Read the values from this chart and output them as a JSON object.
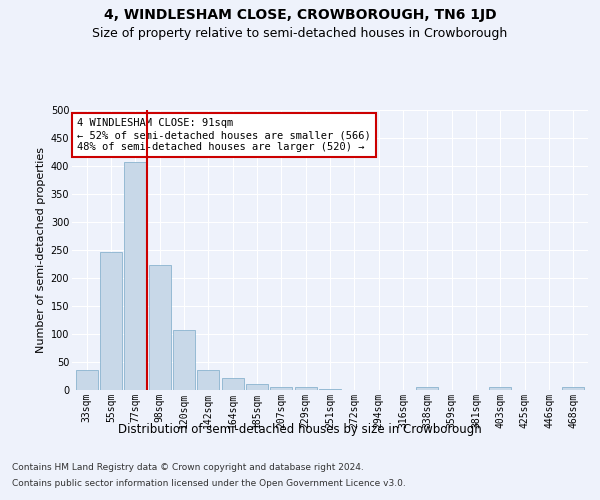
{
  "title": "4, WINDLESHAM CLOSE, CROWBOROUGH, TN6 1JD",
  "subtitle": "Size of property relative to semi-detached houses in Crowborough",
  "xlabel": "Distribution of semi-detached houses by size in Crowborough",
  "ylabel": "Number of semi-detached properties",
  "categories": [
    "33sqm",
    "55sqm",
    "77sqm",
    "98sqm",
    "120sqm",
    "142sqm",
    "164sqm",
    "185sqm",
    "207sqm",
    "229sqm",
    "251sqm",
    "272sqm",
    "294sqm",
    "316sqm",
    "338sqm",
    "359sqm",
    "381sqm",
    "403sqm",
    "425sqm",
    "446sqm",
    "468sqm"
  ],
  "values": [
    35,
    246,
    407,
    224,
    107,
    36,
    21,
    10,
    6,
    5,
    1,
    0,
    0,
    0,
    5,
    0,
    0,
    5,
    0,
    0,
    5
  ],
  "bar_color": "#c8d8e8",
  "bar_edge_color": "#7aaac8",
  "vline_x": 2.5,
  "vline_color": "#cc0000",
  "annotation_text": "4 WINDLESHAM CLOSE: 91sqm\n← 52% of semi-detached houses are smaller (566)\n48% of semi-detached houses are larger (520) →",
  "annotation_box_color": "#ffffff",
  "annotation_box_edge_color": "#cc0000",
  "ylim": [
    0,
    500
  ],
  "yticks": [
    0,
    50,
    100,
    150,
    200,
    250,
    300,
    350,
    400,
    450,
    500
  ],
  "background_color": "#eef2fb",
  "plot_background_color": "#eef2fb",
  "footer_line1": "Contains HM Land Registry data © Crown copyright and database right 2024.",
  "footer_line2": "Contains public sector information licensed under the Open Government Licence v3.0.",
  "title_fontsize": 10,
  "subtitle_fontsize": 9,
  "xlabel_fontsize": 8.5,
  "ylabel_fontsize": 8,
  "tick_fontsize": 7,
  "footer_fontsize": 6.5,
  "annotation_fontsize": 7.5
}
